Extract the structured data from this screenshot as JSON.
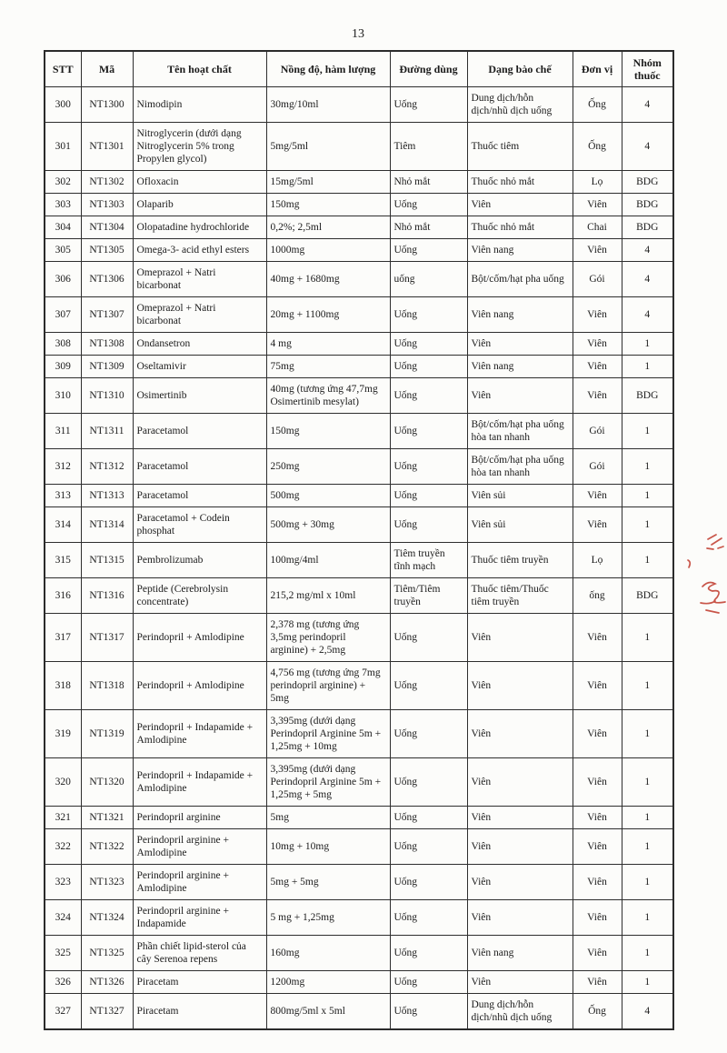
{
  "page": {
    "number": "13"
  },
  "table": {
    "headers": [
      "STT",
      "Mã",
      "Tên hoạt chất",
      "Nồng độ, hàm lượng",
      "Đường dùng",
      "Dạng bào chế",
      "Đơn vị",
      "Nhóm thuốc"
    ],
    "rows": [
      [
        "300",
        "NT1300",
        "Nimodipin",
        "30mg/10ml",
        "Uống",
        "Dung dịch/hỗn dịch/nhũ dịch uống",
        "Ống",
        "4"
      ],
      [
        "301",
        "NT1301",
        "Nitroglycerin (dưới dạng Nitroglycerin 5% trong Propylen glycol)",
        "5mg/5ml",
        "Tiêm",
        "Thuốc tiêm",
        "Ống",
        "4"
      ],
      [
        "302",
        "NT1302",
        "Ofloxacin",
        "15mg/5ml",
        "Nhỏ mắt",
        "Thuốc nhỏ mắt",
        "Lọ",
        "BDG"
      ],
      [
        "303",
        "NT1303",
        "Olaparib",
        "150mg",
        "Uống",
        "Viên",
        "Viên",
        "BDG"
      ],
      [
        "304",
        "NT1304",
        "Olopatadine hydrochloride",
        "0,2%; 2,5ml",
        "Nhỏ mắt",
        "Thuốc nhỏ mắt",
        "Chai",
        "BDG"
      ],
      [
        "305",
        "NT1305",
        "Omega-3- acid ethyl esters",
        "1000mg",
        "Uống",
        "Viên nang",
        "Viên",
        "4"
      ],
      [
        "306",
        "NT1306",
        "Omeprazol + Natri bicarbonat",
        "40mg + 1680mg",
        "uống",
        "Bột/cốm/hạt pha uống",
        "Gói",
        "4"
      ],
      [
        "307",
        "NT1307",
        "Omeprazol + Natri bicarbonat",
        "20mg + 1100mg",
        "Uống",
        "Viên nang",
        "Viên",
        "4"
      ],
      [
        "308",
        "NT1308",
        "Ondansetron",
        "4 mg",
        "Uống",
        "Viên",
        "Viên",
        "1"
      ],
      [
        "309",
        "NT1309",
        "Oseltamivir",
        "75mg",
        "Uống",
        "Viên nang",
        "Viên",
        "1"
      ],
      [
        "310",
        "NT1310",
        "Osimertinib",
        "40mg (tương ứng 47,7mg Osimertinib mesylat)",
        "Uống",
        "Viên",
        "Viên",
        "BDG"
      ],
      [
        "311",
        "NT1311",
        "Paracetamol",
        "150mg",
        "Uống",
        "Bột/cốm/hạt pha uống hòa tan nhanh",
        "Gói",
        "1"
      ],
      [
        "312",
        "NT1312",
        "Paracetamol",
        "250mg",
        "Uống",
        "Bột/cốm/hạt pha uống hòa tan nhanh",
        "Gói",
        "1"
      ],
      [
        "313",
        "NT1313",
        "Paracetamol",
        "500mg",
        "Uống",
        "Viên sủi",
        "Viên",
        "1"
      ],
      [
        "314",
        "NT1314",
        "Paracetamol + Codein phosphat",
        "500mg + 30mg",
        "Uống",
        "Viên sủi",
        "Viên",
        "1"
      ],
      [
        "315",
        "NT1315",
        "Pembrolizumab",
        "100mg/4ml",
        "Tiêm truyền tĩnh mạch",
        "Thuốc tiêm truyền",
        "Lọ",
        "1"
      ],
      [
        "316",
        "NT1316",
        "Peptide (Cerebrolysin concentrate)",
        "215,2 mg/ml x 10ml",
        "Tiêm/Tiêm truyền",
        "Thuốc tiêm/Thuốc tiêm truyền",
        "ống",
        "BDG"
      ],
      [
        "317",
        "NT1317",
        "Perindopril + Amlodipine",
        "2,378 mg (tương ứng 3,5mg perindopril arginine) + 2,5mg",
        "Uống",
        "Viên",
        "Viên",
        "1"
      ],
      [
        "318",
        "NT1318",
        "Perindopril + Amlodipine",
        "4,756 mg (tương ứng 7mg perindopril arginine) + 5mg",
        "Uống",
        "Viên",
        "Viên",
        "1"
      ],
      [
        "319",
        "NT1319",
        "Perindopril + Indapamide + Amlodipine",
        "3,395mg (dưới dạng Perindopril Arginine 5m + 1,25mg + 10mg",
        "Uống",
        "Viên",
        "Viên",
        "1"
      ],
      [
        "320",
        "NT1320",
        "Perindopril + Indapamide + Amlodipine",
        "3,395mg (dưới dạng Perindopril Arginine 5m + 1,25mg + 5mg",
        "Uống",
        "Viên",
        "Viên",
        "1"
      ],
      [
        "321",
        "NT1321",
        "Perindopril arginine",
        "5mg",
        "Uống",
        "Viên",
        "Viên",
        "1"
      ],
      [
        "322",
        "NT1322",
        "Perindopril arginine + Amlodipine",
        "10mg + 10mg",
        "Uống",
        "Viên",
        "Viên",
        "1"
      ],
      [
        "323",
        "NT1323",
        "Perindopril arginine + Amlodipine",
        "5mg + 5mg",
        "Uống",
        "Viên",
        "Viên",
        "1"
      ],
      [
        "324",
        "NT1324",
        "Perindopril arginine + Indapamide",
        "5 mg + 1,25mg",
        "Uống",
        "Viên",
        "Viên",
        "1"
      ],
      [
        "325",
        "NT1325",
        "Phần chiết lipid-sterol của cây Serenoa repens",
        "160mg",
        "Uống",
        "Viên nang",
        "Viên",
        "1"
      ],
      [
        "326",
        "NT1326",
        "Piracetam",
        "1200mg",
        "Uống",
        "Viên",
        "Viên",
        "1"
      ],
      [
        "327",
        "NT1327",
        "Piracetam",
        "800mg/5ml x 5ml",
        "Uống",
        "Dung dịch/hỗn dịch/nhũ dịch uống",
        "Ống",
        "4"
      ]
    ]
  },
  "annotations": {
    "red_mark_name": "red-ink-scribble",
    "red_mark_color": "#c0392b"
  }
}
